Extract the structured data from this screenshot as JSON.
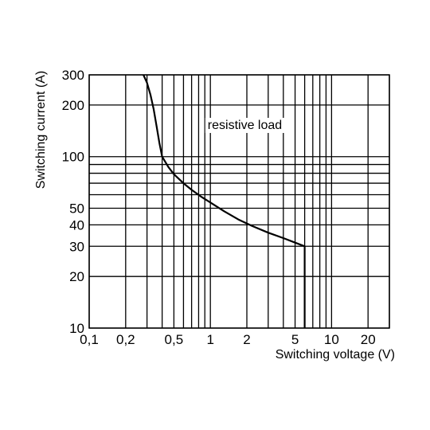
{
  "chart_data": {
    "type": "line",
    "title": "",
    "xlabel": "Switching voltage (V)",
    "ylabel": "Switching current (A)",
    "x_scale": "log",
    "y_scale": "log",
    "xlim": [
      0.1,
      30
    ],
    "ylim": [
      10,
      300
    ],
    "grid": true,
    "x_ticks": [
      {
        "value": 0.1,
        "label": "0,1"
      },
      {
        "value": 0.2,
        "label": "0,2"
      },
      {
        "value": 0.5,
        "label": "0,5"
      },
      {
        "value": 1,
        "label": "1"
      },
      {
        "value": 2,
        "label": "2"
      },
      {
        "value": 5,
        "label": "5"
      },
      {
        "value": 10,
        "label": "10"
      },
      {
        "value": 20,
        "label": "20"
      }
    ],
    "y_ticks": [
      {
        "value": 10,
        "label": "10"
      },
      {
        "value": 20,
        "label": "20"
      },
      {
        "value": 30,
        "label": "30"
      },
      {
        "value": 40,
        "label": "40"
      },
      {
        "value": 50,
        "label": "50"
      },
      {
        "value": 100,
        "label": "100"
      },
      {
        "value": 200,
        "label": "200"
      },
      {
        "value": 300,
        "label": "300"
      }
    ],
    "x_grid_values": [
      0.1,
      0.2,
      0.3,
      0.4,
      0.5,
      0.6,
      0.7,
      0.8,
      0.9,
      1,
      2,
      3,
      4,
      5,
      6,
      7,
      8,
      9,
      10,
      20,
      30
    ],
    "y_grid_values": [
      10,
      20,
      30,
      40,
      50,
      60,
      70,
      80,
      90,
      100,
      200,
      300
    ],
    "series": [
      {
        "x": [
          0.28,
          0.3,
          0.32,
          0.34,
          0.36,
          0.38,
          0.4,
          0.45,
          0.5,
          0.6,
          0.7,
          0.85,
          1.0,
          1.3,
          1.7,
          2.2,
          3.0,
          4.0,
          5.0,
          6.0,
          6.0
        ],
        "y": [
          300,
          270,
          230,
          190,
          150,
          120,
          100,
          87,
          79,
          70,
          64,
          58,
          54,
          48,
          43,
          39.5,
          36,
          33.5,
          31.5,
          30,
          10
        ]
      }
    ],
    "annotations": [
      {
        "text": "resistive load",
        "x": 0.95,
        "y": 145
      }
    ]
  }
}
